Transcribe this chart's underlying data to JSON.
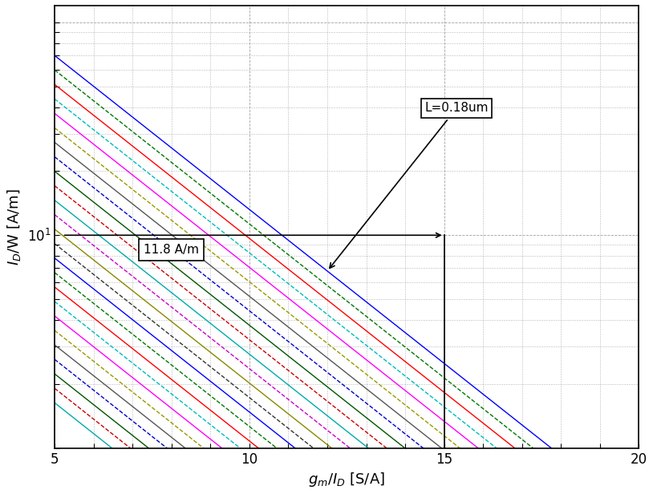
{
  "xlabel": "g_m/I_D [S/A]",
  "ylabel": "I_D/W [A/m]",
  "xlim": [
    5,
    20
  ],
  "ylim": [
    1.0,
    120
  ],
  "xticks": [
    5,
    10,
    15,
    20
  ],
  "n_lines": 25,
  "x_start": 5,
  "x_end": 20,
  "slope_log": -0.1447,
  "intercept_top_log": 2.568,
  "line_step_log": 0.068,
  "background_color": "#ffffff",
  "grid_color": "#888888",
  "figsize": [
    8.14,
    6.16
  ],
  "dpi": 100,
  "colors_cycle": [
    "#0000FF",
    "#007700",
    "#FF0000",
    "#00BBBB",
    "#FF00FF",
    "#999900",
    "#555555",
    "#0000CC",
    "#005500",
    "#CC0000",
    "#00AAAA",
    "#CC00CC",
    "#888800",
    "#333333",
    "#0000FF",
    "#007700",
    "#FF0000",
    "#00BBBB",
    "#FF00FF",
    "#999900",
    "#555555",
    "#0000CC",
    "#005500",
    "#CC0000",
    "#00AAAA"
  ]
}
